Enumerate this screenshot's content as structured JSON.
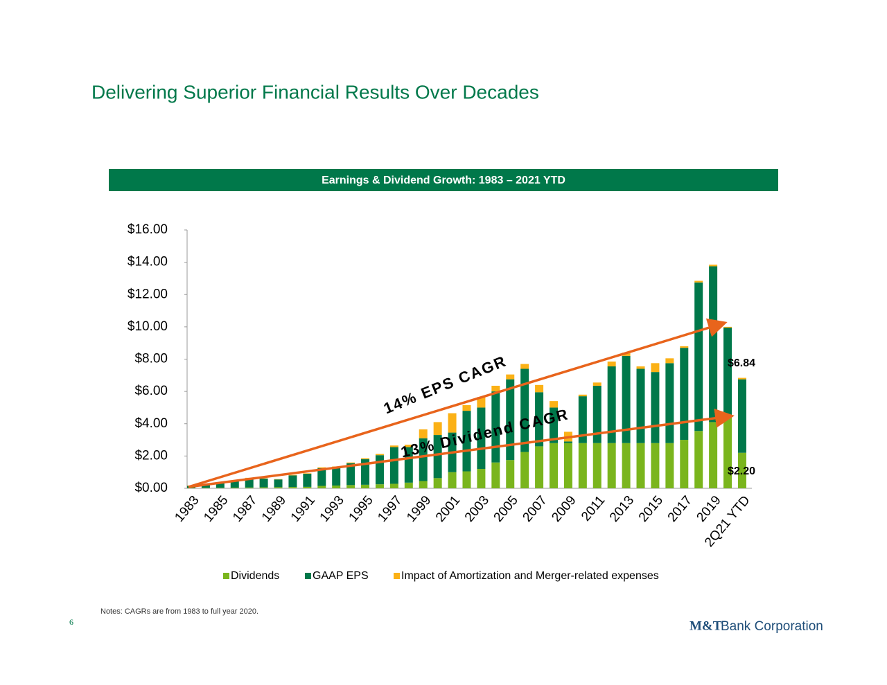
{
  "title": "Delivering Superior Financial Results Over Decades",
  "notes": "Notes: CAGRs are from 1983 to full year 2020.",
  "page_number": "6",
  "logo": {
    "brand": "M&T",
    "name": "Bank Corporation"
  },
  "chart_data": {
    "type": "stacked_bar",
    "title": "Earnings & Dividend Growth: 1983 – 2021 YTD",
    "categories": [
      "1983",
      null,
      "1985",
      null,
      "1987",
      null,
      "1989",
      null,
      "1991",
      null,
      "1993",
      null,
      "1995",
      null,
      "1997",
      null,
      "1999",
      null,
      "2001",
      null,
      "2003",
      null,
      "2005",
      null,
      "2007",
      null,
      "2009",
      null,
      "2011",
      null,
      "2013",
      null,
      "2015",
      null,
      "2017",
      null,
      "2019",
      null,
      "2Q21 YTD"
    ],
    "series": [
      {
        "name": "Dividends",
        "color": "#7ab51d",
        "values": [
          0.02,
          0.03,
          0.03,
          0.04,
          0.05,
          0.06,
          0.07,
          0.08,
          0.09,
          0.15,
          0.17,
          0.2,
          0.22,
          0.25,
          0.28,
          0.35,
          0.45,
          0.63,
          1.0,
          1.05,
          1.2,
          1.6,
          1.75,
          2.25,
          2.6,
          2.8,
          2.8,
          2.8,
          2.8,
          2.8,
          2.8,
          2.8,
          2.8,
          2.8,
          3.0,
          3.55,
          4.1,
          4.4,
          2.2
        ]
      },
      {
        "name": "GAAP EPS",
        "color": "#00784a",
        "values": [
          0.13,
          0.22,
          0.32,
          0.41,
          0.55,
          0.54,
          0.48,
          0.72,
          0.81,
          1.1,
          1.13,
          1.35,
          1.58,
          1.8,
          2.27,
          2.2,
          2.65,
          2.67,
          2.45,
          3.75,
          3.8,
          4.4,
          5.0,
          5.15,
          3.35,
          2.2,
          0.1,
          2.9,
          3.55,
          4.75,
          5.4,
          4.6,
          4.4,
          4.95,
          5.7,
          9.2,
          9.65,
          5.55,
          4.55
        ]
      },
      {
        "name": "Impact of Amortization and Merger-related expenses",
        "color": "#fbb116",
        "values": [
          0.02,
          0.03,
          0.03,
          0.04,
          0.05,
          0.02,
          0.02,
          0.03,
          0.03,
          0.05,
          0.05,
          0.05,
          0.06,
          0.08,
          0.1,
          0.15,
          0.55,
          0.8,
          1.2,
          0.35,
          0.65,
          0.35,
          0.3,
          0.3,
          0.45,
          0.4,
          0.6,
          0.1,
          0.2,
          0.3,
          0.2,
          0.15,
          0.55,
          0.3,
          0.1,
          0.1,
          0.1,
          0.05,
          0.09
        ]
      }
    ],
    "ylim": [
      0,
      16
    ],
    "yticks": [
      {
        "value": 0,
        "label": "$0.00"
      },
      {
        "value": 2,
        "label": "$2.00"
      },
      {
        "value": 4,
        "label": "$4.00"
      },
      {
        "value": 6,
        "label": "$6.00"
      },
      {
        "value": 8,
        "label": "$8.00"
      },
      {
        "value": 10,
        "label": "$10.00"
      },
      {
        "value": 12,
        "label": "$12.00"
      },
      {
        "value": 14,
        "label": "$14.00"
      },
      {
        "value": 16,
        "label": "$16.00"
      }
    ],
    "annotations": [
      "14% EPS CAGR",
      "13% Dividend CAGR",
      "$6.84",
      "$2.20"
    ],
    "legend": "bottom"
  }
}
